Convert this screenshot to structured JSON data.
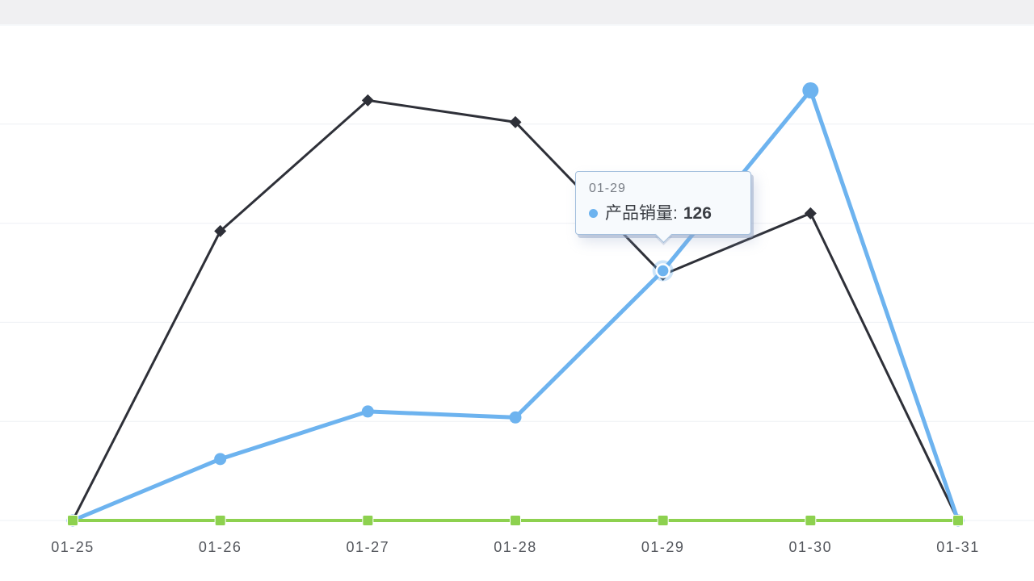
{
  "chart_data": {
    "type": "line",
    "categories": [
      "01-25",
      "01-26",
      "01-27",
      "01-28",
      "01-29",
      "01-30",
      "01-31"
    ],
    "series": [
      {
        "id": "black-series",
        "color": "#2e3038",
        "marker": "diamond",
        "line_width": 3,
        "marker_size": 7.5,
        "values": [
          0,
          146,
          212,
          201,
          124,
          155,
          0
        ]
      },
      {
        "id": "product-sales",
        "name": "产品销量",
        "color": "#6db3ef",
        "marker": "circle",
        "line_width": 5,
        "marker_size": 7.5,
        "marker_size_overrides": {
          "5": 10
        },
        "values": [
          0,
          31,
          55,
          52,
          126,
          217,
          0
        ]
      },
      {
        "id": "green-series",
        "color": "#8dd14f",
        "marker": "square",
        "line_width": 4,
        "marker_size": 6.5,
        "values": [
          0,
          0,
          0,
          0,
          0,
          0,
          0
        ]
      }
    ],
    "ylim": [
      0,
      250
    ],
    "y_grid_step": 50,
    "grid": "on",
    "legend": "none",
    "highlight": {
      "series_index": 1,
      "point_index": 4
    },
    "x_label_color": "#53565c",
    "gridline_color": "#eef0f4"
  },
  "tooltip": {
    "date": "01-29",
    "series_label": "产品销量:",
    "value": "126",
    "dot_color": "#6db3ef"
  }
}
